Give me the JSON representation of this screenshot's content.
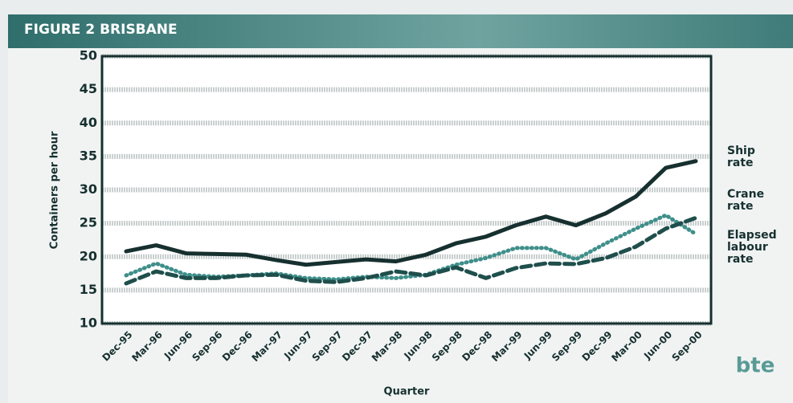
{
  "chart_data": {
    "type": "line",
    "title": "FIGURE 2  BRISBANE",
    "y_label": "Containers per hour",
    "x_label": "Quarter",
    "logo": "bte",
    "categories": [
      "Dec-95",
      "Mar-96",
      "Jun-96",
      "Sep-96",
      "Dec-96",
      "Mar-97",
      "Jun-97",
      "Sep-97",
      "Dec-97",
      "Mar-98",
      "Jun-98",
      "Sep-98",
      "Dec-98",
      "Mar-99",
      "Jun-99",
      "Sep-99",
      "Dec-99",
      "Mar-00",
      "Jun-00",
      "Sep-00"
    ],
    "series": [
      {
        "name": "Ship rate",
        "color": "#16302f",
        "style": "solid",
        "values": [
          20.8,
          21.7,
          20.5,
          20.4,
          20.3,
          19.5,
          18.8,
          19.2,
          19.6,
          19.3,
          20.3,
          22,
          23,
          24.7,
          26,
          24.7,
          26.5,
          29,
          33.3,
          34.3
        ]
      },
      {
        "name": "Crane rate",
        "color": "#3f8f8a",
        "style": "dotted",
        "values": [
          17.2,
          19,
          17.3,
          17,
          17.2,
          17.5,
          16.8,
          16.6,
          17,
          16.8,
          17.3,
          18.8,
          19.8,
          21.3,
          21.3,
          19.6,
          22,
          24.2,
          26.2,
          23.4
        ]
      },
      {
        "name": "Elapsed labour rate",
        "color": "#1f4f4c",
        "style": "dashed",
        "values": [
          16,
          17.8,
          16.8,
          16.8,
          17.2,
          17.3,
          16.4,
          16.2,
          16.8,
          17.8,
          17.2,
          18.4,
          16.8,
          18.3,
          19,
          18.9,
          19.8,
          21.5,
          24.2,
          25.8
        ]
      }
    ],
    "ylim": [
      10,
      50
    ],
    "yticks": [
      10,
      15,
      20,
      25,
      30,
      35,
      40,
      45,
      50
    ],
    "grid": true
  }
}
